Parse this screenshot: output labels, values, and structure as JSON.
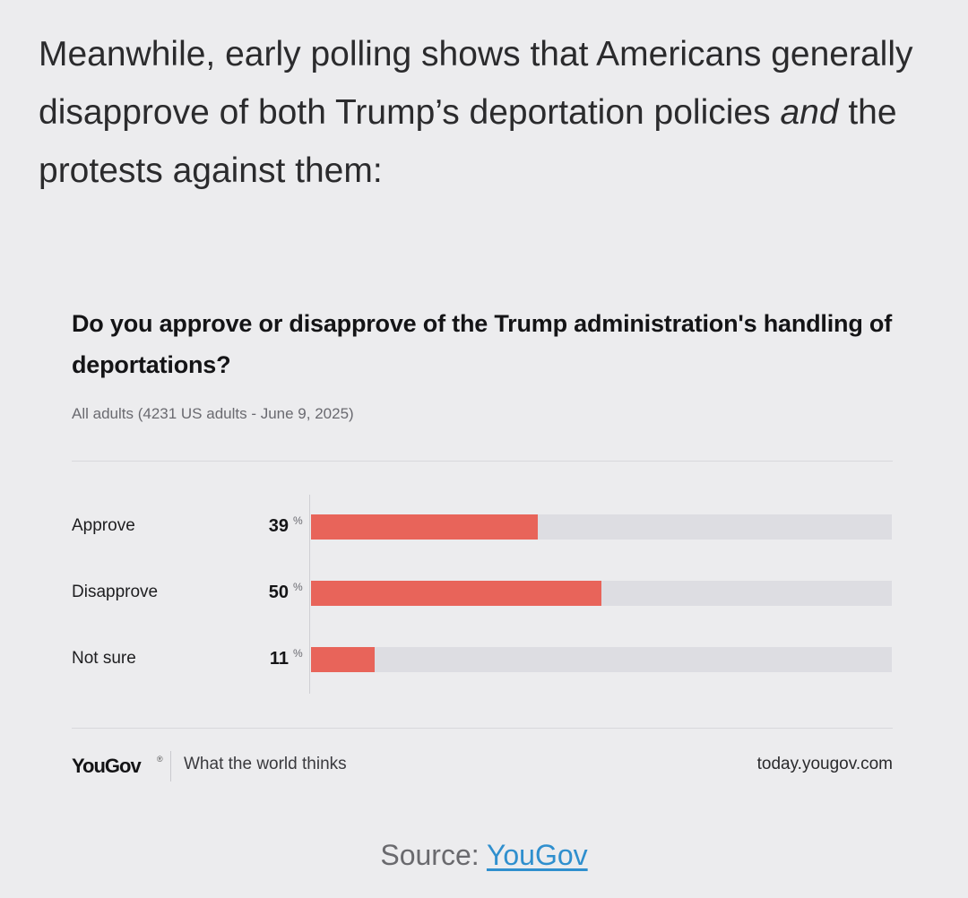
{
  "intro": {
    "before": "Meanwhile, early polling shows that Americans generally disapprove of both Trump’s deportation policies ",
    "emphasis": "and",
    "after": " the protests against them:"
  },
  "chart_data": {
    "type": "bar",
    "orientation": "horizontal",
    "title": "Do you approve or disapprove of the Trump administration's handling of deportations?",
    "subtitle": "All adults (4231 US adults - June 9, 2025)",
    "categories": [
      "Approve",
      "Disapprove",
      "Not sure"
    ],
    "values": [
      39,
      50,
      11
    ],
    "value_labels": [
      "39",
      "50",
      "11"
    ],
    "unit": "%",
    "xlim": [
      0,
      100
    ],
    "bar_color": "#e8645a",
    "track_color": "#dddde2",
    "grid": false,
    "legend": "none"
  },
  "footer": {
    "brand": "YouGov",
    "brand_mark": "®",
    "tagline": "What the world thinks",
    "site": "today.yougov.com"
  },
  "source": {
    "label": "Source: ",
    "link_text": "YouGov",
    "link_color": "#2f8fce"
  }
}
